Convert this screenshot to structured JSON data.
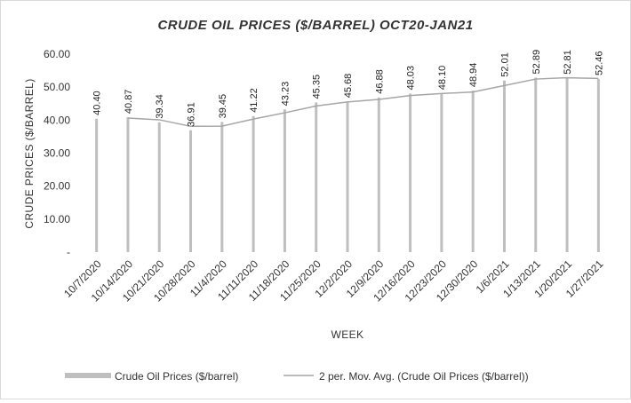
{
  "chart_data": {
    "type": "bar",
    "title": "CRUDE OIL PRICES ($/BARREL) OCT20-JAN21",
    "xlabel": "WEEK",
    "ylabel": "CRUDE PRICES ($/BARREL)",
    "ylim": [
      0,
      60
    ],
    "yticks": [
      "-",
      "10.00",
      "20.00",
      "30.00",
      "40.00",
      "50.00",
      "60.00"
    ],
    "grid": false,
    "legend_position": "bottom",
    "categories": [
      "10/7/2020",
      "10/14/2020",
      "10/21/2020",
      "10/28/2020",
      "11/4/2020",
      "11/11/2020",
      "11/18/2020",
      "11/25/2020",
      "12/2/2020",
      "12/9/2020",
      "12/16/2020",
      "12/23/2020",
      "12/30/2020",
      "1/6/2021",
      "1/13/2021",
      "1/20/2021",
      "1/27/2021"
    ],
    "series": [
      {
        "name": "Crude Oil Prices ($/barrel)",
        "type": "bar",
        "values": [
          40.4,
          40.87,
          39.34,
          36.91,
          39.45,
          41.22,
          43.23,
          45.35,
          45.68,
          46.88,
          48.03,
          48.1,
          48.94,
          52.01,
          52.89,
          52.81,
          52.46
        ],
        "data_labels": [
          "40.40",
          "40.87",
          "39.34",
          "36.91",
          "39.45",
          "41.22",
          "43.23",
          "45.35",
          "45.68",
          "46.88",
          "48.03",
          "48.10",
          "48.94",
          "52.01",
          "52.89",
          "52.81",
          "52.46"
        ],
        "color": "#bfbfbf"
      },
      {
        "name": "2 per. Mov. Avg. (Crude Oil Prices ($/barrel))",
        "type": "line",
        "period": 2,
        "color": "#a6a6a6"
      }
    ]
  }
}
